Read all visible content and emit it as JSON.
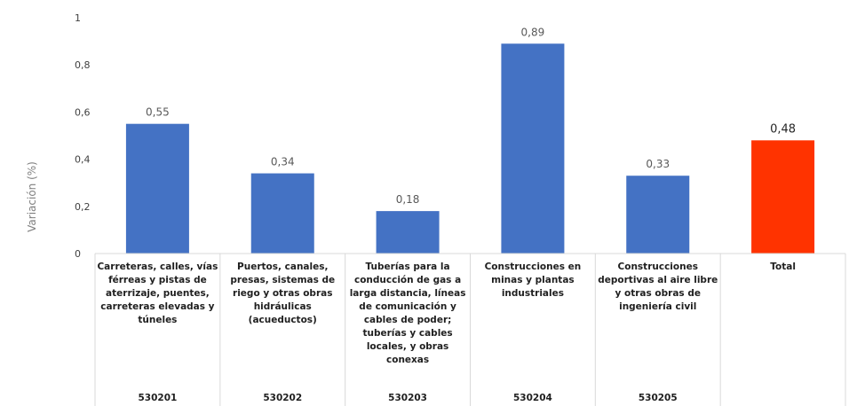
{
  "chart_data": {
    "type": "bar",
    "ylabel": "Variación (%)",
    "ylim": [
      0,
      1
    ],
    "yticks": [
      "0",
      "0,2",
      "0,4",
      "0,6",
      "0,8",
      "1"
    ],
    "categories": [
      "Carreteras, calles, vías férreas y pistas de aterrizaje, puentes, carreteras elevadas y túneles",
      "Puertos, canales, presas, sistemas de riego y otras obras hidráulicas (acueductos)",
      "Tuberías para la conducción de gas a larga distancia, líneas de comunicación y cables de poder; tuberías y cables locales, y obras conexas",
      "Construcciones  en minas y plantas industriales",
      "Construcciones deportivas al aire libre y otras obras de ingeniería civil",
      "Total"
    ],
    "codes": [
      "530201",
      "530202",
      "530203",
      "530204",
      "530205",
      ""
    ],
    "values": [
      0.55,
      0.34,
      0.18,
      0.89,
      0.33,
      0.48
    ],
    "data_labels": [
      "0,55",
      "0,34",
      "0,18",
      "0,89",
      "0,33",
      "0,48"
    ],
    "colors": [
      "#4472c4",
      "#4472c4",
      "#4472c4",
      "#4472c4",
      "#4472c4",
      "#ff3300"
    ],
    "grid": false,
    "legend": "none"
  }
}
